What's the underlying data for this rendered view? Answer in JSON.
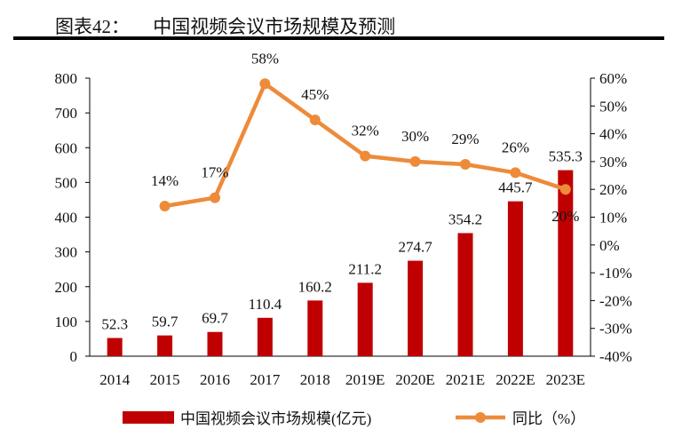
{
  "header": {
    "figure_label": "图表42：",
    "title": "中国视频会议市场规模及预测"
  },
  "chart_data": {
    "type": "bar",
    "title": "中国视频会议市场规模及预测",
    "categories": [
      "2014",
      "2015",
      "2016",
      "2017",
      "2018",
      "2019E",
      "2020E",
      "2021E",
      "2022E",
      "2023E"
    ],
    "series": [
      {
        "name": "中国视频会议市场规模(亿元)",
        "type": "bar",
        "axis": "left",
        "color": "#C00000",
        "values": [
          52.3,
          59.7,
          69.7,
          110.4,
          160.2,
          211.2,
          274.7,
          354.2,
          445.7,
          535.3
        ],
        "labels": [
          "52.3",
          "59.7",
          "69.7",
          "110.4",
          "160.2",
          "211.2",
          "274.7",
          "354.2",
          "445.7",
          "535.3"
        ]
      },
      {
        "name": "同比（%）",
        "type": "line",
        "axis": "right",
        "color": "#ED8B3A",
        "values": [
          null,
          14,
          17,
          58,
          45,
          32,
          30,
          29,
          26,
          20
        ],
        "labels": [
          "",
          "14%",
          "17%",
          "58%",
          "45%",
          "32%",
          "30%",
          "29%",
          "26%",
          "20%"
        ]
      }
    ],
    "left_axis": {
      "range": [
        0,
        800
      ],
      "ticks": [
        "0",
        "100",
        "200",
        "300",
        "400",
        "500",
        "600",
        "700",
        "800"
      ]
    },
    "right_axis": {
      "range": [
        -40,
        60
      ],
      "unit": "%",
      "ticks": [
        "-40%",
        "-30%",
        "-20%",
        "-10%",
        "0%",
        "10%",
        "20%",
        "30%",
        "40%",
        "50%",
        "60%"
      ]
    },
    "grid": false,
    "legend": "bottom"
  }
}
